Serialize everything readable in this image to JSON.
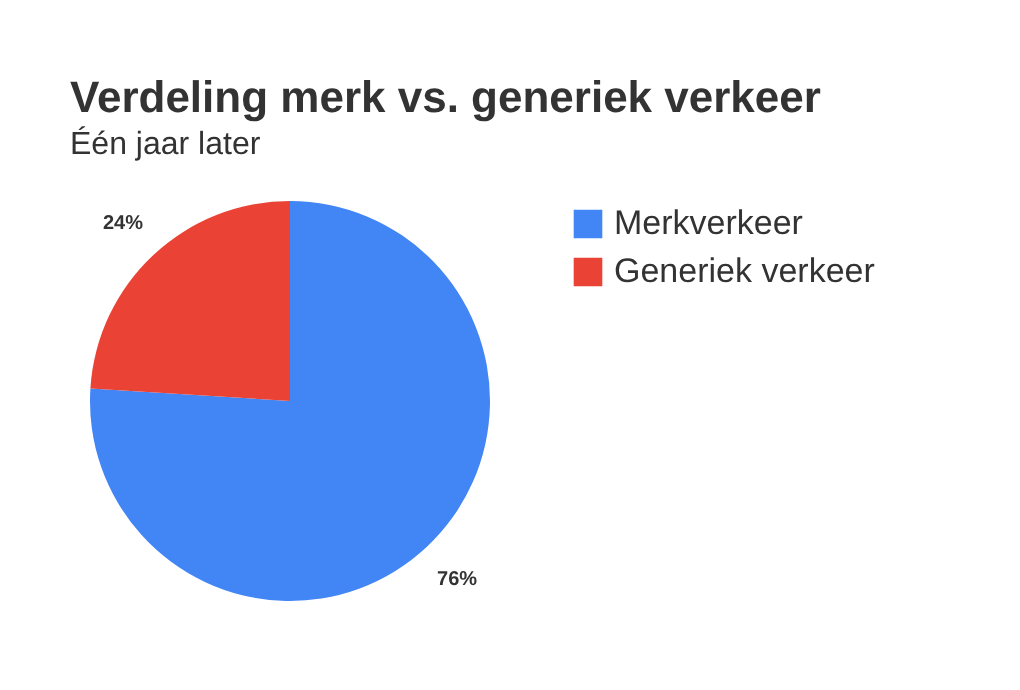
{
  "chart_data": {
    "type": "pie",
    "title": "Verdeling merk vs. generiek verkeer",
    "subtitle": "Één jaar later",
    "categories": [
      "Merkverkeer",
      "Generiek verkeer"
    ],
    "values": [
      76,
      24
    ],
    "colors": [
      "#4285f4",
      "#ea4335"
    ],
    "value_labels": [
      "76%",
      "24%"
    ],
    "legend": "right"
  }
}
